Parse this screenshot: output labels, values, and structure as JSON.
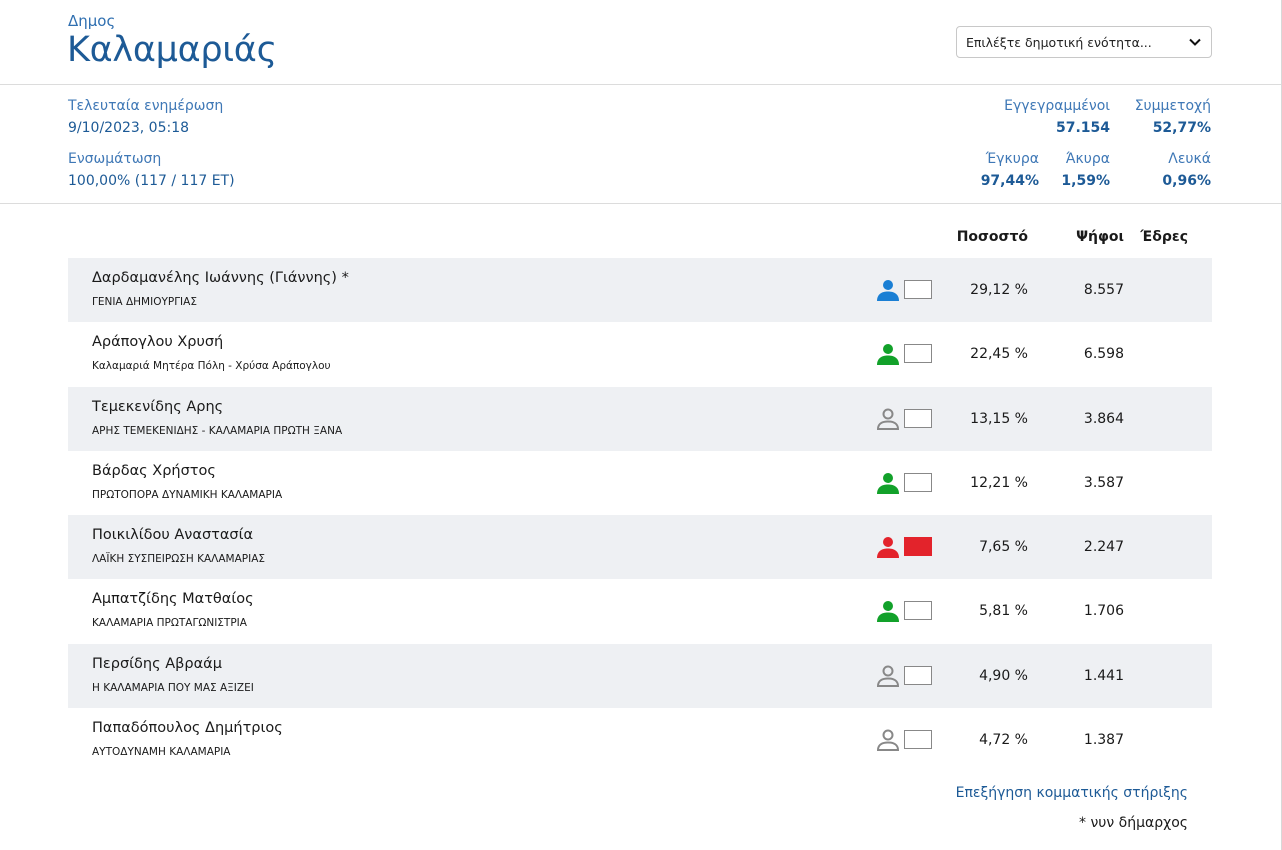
{
  "header": {
    "kind": "Δημος",
    "title": "Καλαμαριάς",
    "select_placeholder": "Επιλέξτε δημοτική ενότητα..."
  },
  "stats": {
    "last_update_label": "Τελευταία ενημέρωση",
    "last_update_value": "9/10/2023, 05:18",
    "incorporation_label": "Ενσωμάτωση",
    "incorporation_value": "100,00% (117 / 117 ΕΤ)",
    "registered_label": "Εγγεγραμμένοι",
    "registered_value": "57.154",
    "turnout_label": "Συμμετοχή",
    "turnout_value": "52,77%",
    "valid_label": "Έγκυρα",
    "valid_value": "97,44%",
    "invalid_label": "Άκυρα",
    "invalid_value": "1,59%",
    "blank_label": "Λευκά",
    "blank_value": "0,96%"
  },
  "table": {
    "headers": {
      "percent": "Ποσοστό",
      "votes": "Ψήφοι",
      "seats": "Έδρες"
    },
    "rows": [
      {
        "candidate": "Δαρδαμανέλης Ιωάννης (Γιάννης) *",
        "party": "ΓΕΝΙΑ ΔΗΜΙΟΥΡΓΙΑΣ",
        "percent": "29,12 %",
        "votes": "8.557",
        "icon_color": "#1a7fd4",
        "icon_style": "filled",
        "box_color": "#ffffff"
      },
      {
        "candidate": "Αράπογλου Χρυσή",
        "party": "Καλαμαριά Μητέρα Πόλη - Χρύσα Αράπογλου",
        "percent": "22,45 %",
        "votes": "6.598",
        "icon_color": "#12a12a",
        "icon_style": "filled",
        "box_color": "#ffffff"
      },
      {
        "candidate": "Τεμεκενίδης Αρης",
        "party": "ΑΡΗΣ ΤΕΜΕΚΕΝΙΔΗΣ - ΚΑΛΑΜΑΡΙΑ ΠΡΩΤΗ ΞΑΝΑ",
        "percent": "13,15 %",
        "votes": "3.864",
        "icon_color": "#888888",
        "icon_style": "outline",
        "box_color": "#ffffff"
      },
      {
        "candidate": "Βάρδας Χρήστος",
        "party": "ΠΡΩΤΟΠΟΡΑ ΔΥΝΑΜΙΚΗ ΚΑΛΑΜΑΡΙΑ",
        "percent": "12,21 %",
        "votes": "3.587",
        "icon_color": "#12a12a",
        "icon_style": "filled",
        "box_color": "#ffffff"
      },
      {
        "candidate": "Ποικιλίδου Αναστασία",
        "party": "ΛΑΪΚΗ ΣΥΣΠΕΙΡΩΣΗ ΚΑΛΑΜΑΡΙΑΣ",
        "percent": "7,65 %",
        "votes": "2.247",
        "icon_color": "#e3232b",
        "icon_style": "filled",
        "box_color": "#e3232b"
      },
      {
        "candidate": "Αμπατζίδης Ματθαίος",
        "party": "ΚΑΛΑΜΑΡΙΑ ΠΡΩΤΑΓΩΝΙΣΤΡΙΑ",
        "percent": "5,81 %",
        "votes": "1.706",
        "icon_color": "#12a12a",
        "icon_style": "filled",
        "box_color": "#ffffff"
      },
      {
        "candidate": "Περσίδης Αβραάμ",
        "party": "Η ΚΑΛΑΜΑΡΙΑ ΠΟΥ ΜΑΣ ΑΞΙΖΕΙ",
        "percent": "4,90 %",
        "votes": "1.441",
        "icon_color": "#888888",
        "icon_style": "outline",
        "box_color": "#ffffff"
      },
      {
        "candidate": "Παπαδόπουλος Δημήτριος",
        "party": "ΑΥΤΟΔΥΝΑΜΗ ΚΑΛΑΜΑΡΙΑ",
        "percent": "4,72 %",
        "votes": "1.387",
        "icon_color": "#888888",
        "icon_style": "outline",
        "box_color": "#ffffff"
      }
    ]
  },
  "footer": {
    "support_link": "Επεξήγηση κομματικής στήριξης",
    "note": "* νυν δήμαρχος"
  }
}
